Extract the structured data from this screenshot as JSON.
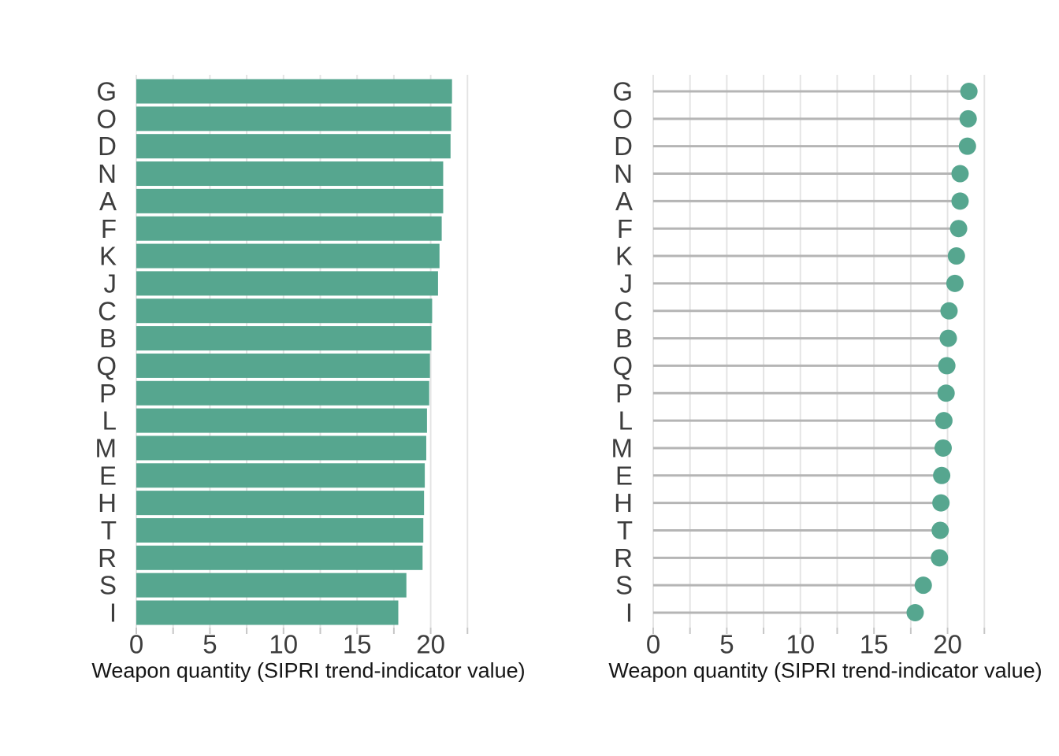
{
  "figure": {
    "background": "#ffffff",
    "accent_color": "#56a68f",
    "grid_color": "#e4e4e4",
    "stem_color": "#b5b5b5",
    "tick_color": "#c6c6c6",
    "axis_text_color": "#3d3d3d",
    "axis_title_color": "#151515"
  },
  "chart_data": [
    {
      "type": "bar",
      "orientation": "horizontal",
      "title": "",
      "categories": [
        "G",
        "O",
        "D",
        "N",
        "A",
        "F",
        "K",
        "J",
        "C",
        "B",
        "Q",
        "P",
        "L",
        "M",
        "E",
        "H",
        "T",
        "R",
        "S",
        "I"
      ],
      "values": [
        21.45,
        21.4,
        21.35,
        20.85,
        20.85,
        20.75,
        20.6,
        20.5,
        20.1,
        20.05,
        19.95,
        19.9,
        19.75,
        19.7,
        19.6,
        19.55,
        19.5,
        19.45,
        18.35,
        17.8
      ],
      "xlabel": "Weapon quantity (SIPRI trend-indicator value)",
      "ylabel": "",
      "x_tick_labels": [
        0,
        5,
        10,
        15,
        20
      ],
      "x_minor_tick_step": 2.5,
      "xlim": [
        0,
        22.86
      ],
      "grid": {
        "vertical_step": 2.5,
        "horizontal_lines": false
      },
      "legend": "none"
    },
    {
      "type": "scatter",
      "style": "lollipop",
      "orientation": "horizontal",
      "title": "",
      "categories": [
        "G",
        "O",
        "D",
        "N",
        "A",
        "F",
        "K",
        "J",
        "C",
        "B",
        "Q",
        "P",
        "L",
        "M",
        "E",
        "H",
        "T",
        "R",
        "S",
        "I"
      ],
      "values": [
        21.45,
        21.4,
        21.35,
        20.85,
        20.85,
        20.75,
        20.6,
        20.5,
        20.1,
        20.05,
        19.95,
        19.9,
        19.75,
        19.7,
        19.6,
        19.55,
        19.5,
        19.45,
        18.35,
        17.8
      ],
      "xlabel": "Weapon quantity (SIPRI trend-indicator value)",
      "ylabel": "",
      "x_tick_labels": [
        0,
        5,
        10,
        15,
        20
      ],
      "x_minor_tick_step": 2.5,
      "xlim": [
        0,
        22.86
      ],
      "grid": {
        "vertical_step": 2.5,
        "horizontal_lines": false
      },
      "legend": "none"
    }
  ]
}
